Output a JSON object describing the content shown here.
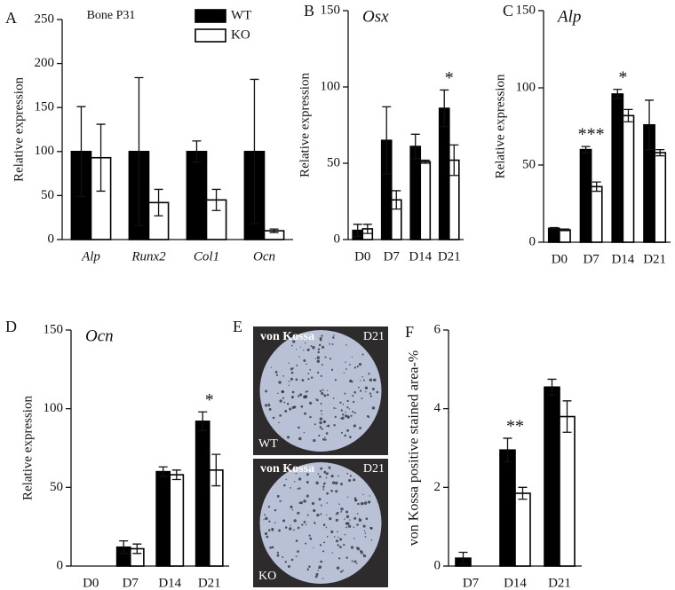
{
  "chart_data": [
    {
      "type": "bar",
      "label": "A",
      "title": "Bone P31",
      "ylabel": "Relative expression",
      "categories": [
        "Alp",
        "Runx2",
        "Col1",
        "Ocn"
      ],
      "ylim": [
        0,
        250
      ],
      "yticks": [
        0,
        50,
        100,
        150,
        200,
        250
      ],
      "legend": "top-right",
      "series": [
        {
          "name": "WT",
          "color": "#000000",
          "values": [
            100,
            100,
            100,
            100
          ],
          "errors": [
            51,
            84,
            12,
            82
          ]
        },
        {
          "name": "KO",
          "color": "#ffffff",
          "values": [
            93,
            42,
            45,
            10
          ],
          "errors": [
            38,
            15,
            12,
            2
          ]
        }
      ]
    },
    {
      "type": "bar",
      "label": "B",
      "title": "Osx",
      "ylabel": "Relative expression",
      "categories": [
        "D0",
        "D7",
        "D14",
        "D21"
      ],
      "ylim": [
        0,
        150
      ],
      "yticks": [
        0,
        50,
        100,
        150
      ],
      "series": [
        {
          "name": "WT",
          "color": "#000000",
          "values": [
            6,
            65,
            61,
            86
          ],
          "errors": [
            4,
            22,
            8,
            12
          ]
        },
        {
          "name": "KO",
          "color": "#ffffff",
          "values": [
            7,
            26,
            51,
            52
          ],
          "errors": [
            3,
            6,
            1,
            10
          ]
        }
      ],
      "annotations": [
        {
          "text": "*",
          "x": "D21"
        }
      ]
    },
    {
      "type": "bar",
      "label": "C",
      "title": "Alp",
      "ylabel": "Relative expression",
      "categories": [
        "D0",
        "D7",
        "D14",
        "D21"
      ],
      "ylim": [
        0,
        150
      ],
      "yticks": [
        0,
        50,
        100,
        150
      ],
      "series": [
        {
          "name": "WT",
          "color": "#000000",
          "values": [
            9,
            60,
            96,
            76
          ],
          "errors": [
            0.5,
            2,
            3,
            16
          ]
        },
        {
          "name": "KO",
          "color": "#ffffff",
          "values": [
            8,
            36,
            82,
            58
          ],
          "errors": [
            0.5,
            3,
            4,
            2
          ]
        }
      ],
      "annotations": [
        {
          "text": "***",
          "x": "D7"
        },
        {
          "text": "*",
          "x": "D14"
        }
      ]
    },
    {
      "type": "bar",
      "label": "D",
      "title": "Ocn",
      "ylabel": "Relative expression",
      "categories": [
        "D0",
        "D7",
        "D14",
        "D21"
      ],
      "ylim": [
        0,
        150
      ],
      "yticks": [
        0,
        50,
        100,
        150
      ],
      "series": [
        {
          "name": "WT",
          "color": "#000000",
          "values": [
            0,
            12,
            60,
            92
          ],
          "errors": [
            0,
            4,
            3,
            6
          ]
        },
        {
          "name": "KO",
          "color": "#ffffff",
          "values": [
            0,
            11,
            58,
            61
          ],
          "errors": [
            0,
            3,
            3,
            10
          ]
        }
      ],
      "annotations": [
        {
          "text": "*",
          "x": "D21"
        }
      ]
    },
    {
      "type": "image",
      "label": "E",
      "panels": [
        {
          "title": "von Kossa",
          "day": "D21",
          "group": "WT"
        },
        {
          "title": "von Kossa",
          "day": "D21",
          "group": "KO"
        }
      ]
    },
    {
      "type": "bar",
      "label": "F",
      "ylabel": "von Kossa positive stained area-%",
      "categories": [
        "D7",
        "D14",
        "D21"
      ],
      "ylim": [
        0,
        6
      ],
      "yticks": [
        0,
        2,
        4,
        6
      ],
      "series": [
        {
          "name": "WT",
          "color": "#000000",
          "values": [
            0.2,
            2.95,
            4.55
          ],
          "errors": [
            0.15,
            0.3,
            0.2
          ]
        },
        {
          "name": "KO",
          "color": "#ffffff",
          "values": [
            null,
            1.85,
            3.8
          ],
          "errors": [
            null,
            0.15,
            0.4
          ]
        }
      ],
      "annotations": [
        {
          "text": "**",
          "x": "D14"
        }
      ]
    }
  ]
}
